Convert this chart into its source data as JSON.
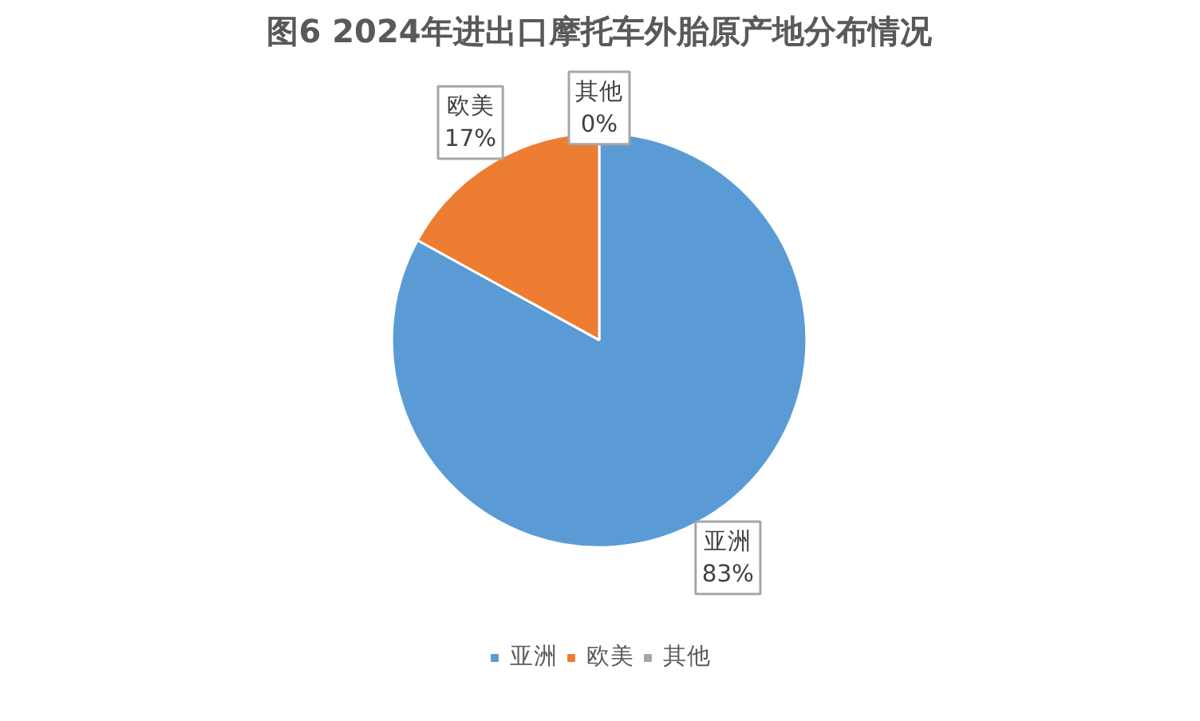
{
  "chart_data": {
    "type": "pie",
    "title": "图6 2024年进出口摩托车外胎原产地分布情况",
    "categories": [
      "亚洲",
      "欧美",
      "其他"
    ],
    "values": [
      83,
      17,
      0
    ],
    "colors": [
      "#5b9bd5",
      "#ed7d31",
      "#a5a5a5"
    ],
    "value_labels": [
      "83%",
      "17%",
      "0%"
    ],
    "legend": "bottom"
  }
}
